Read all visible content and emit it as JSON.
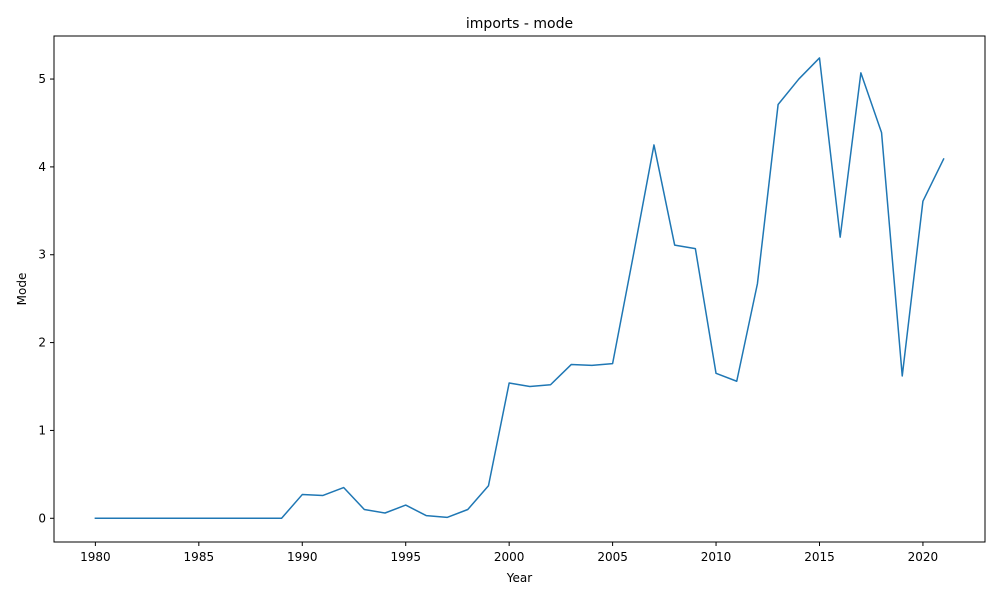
{
  "chart_data": {
    "type": "line",
    "title": "imports - mode",
    "xlabel": "Year",
    "ylabel": "Mode",
    "xlim": [
      1978,
      2023
    ],
    "ylim": [
      -0.27,
      5.49
    ],
    "xticks": [
      1980,
      1985,
      1990,
      1995,
      2000,
      2005,
      2010,
      2015,
      2020
    ],
    "yticks": [
      0,
      1,
      2,
      3,
      4,
      5
    ],
    "grid": false,
    "series": [
      {
        "color": "#1f77b4",
        "x": [
          1980,
          1981,
          1982,
          1983,
          1984,
          1985,
          1986,
          1987,
          1988,
          1989,
          1990,
          1991,
          1992,
          1993,
          1994,
          1995,
          1996,
          1997,
          1998,
          1999,
          2000,
          2001,
          2002,
          2003,
          2004,
          2005,
          2006,
          2007,
          2008,
          2009,
          2010,
          2011,
          2012,
          2013,
          2014,
          2015,
          2016,
          2017,
          2018,
          2019,
          2020,
          2021
        ],
        "y": [
          0,
          0,
          0,
          0,
          0,
          0,
          0,
          0,
          0,
          0,
          0.27,
          0.26,
          0.35,
          0.1,
          0.06,
          0.15,
          0.03,
          0.01,
          0.1,
          0.37,
          1.54,
          1.5,
          1.52,
          1.75,
          1.74,
          1.76,
          2.99,
          4.25,
          3.11,
          3.07,
          1.65,
          1.56,
          2.67,
          4.71,
          5.0,
          5.24,
          3.2,
          5.07,
          4.39,
          1.62,
          3.61,
          4.09
        ]
      }
    ]
  }
}
